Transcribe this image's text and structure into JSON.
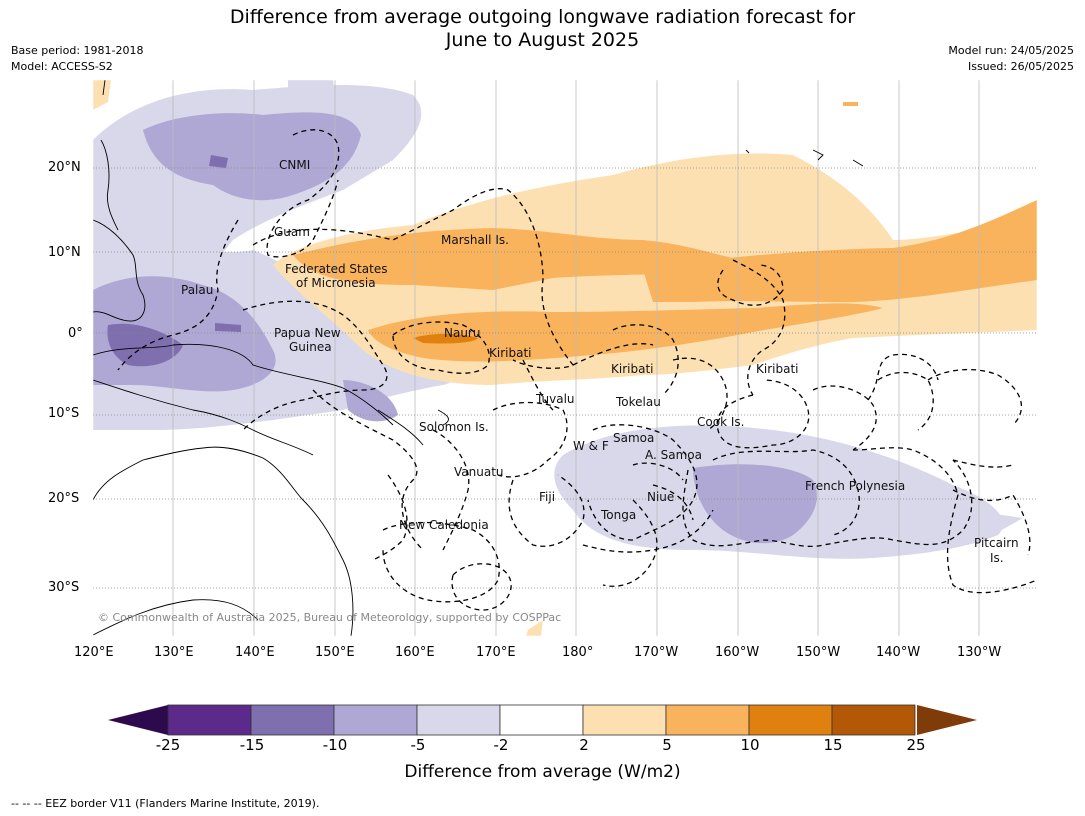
{
  "title_line1": "Difference from average outgoing longwave radiation forecast for",
  "title_line2": "June to August 2025",
  "meta_left": [
    "Base period: 1981-2018",
    "Model: ACCESS-S2"
  ],
  "meta_right": [
    "Model run: 24/05/2025",
    "Issued: 26/05/2025"
  ],
  "lat_labels": [
    "20°N",
    "10°N",
    "0°",
    "10°S",
    "20°S",
    "30°S"
  ],
  "lon_labels": [
    "120°E",
    "130°E",
    "140°E",
    "150°E",
    "160°E",
    "170°E",
    "180°",
    "170°W",
    "160°W",
    "150°W",
    "140°W",
    "130°W"
  ],
  "places": [
    "CNMI",
    "Guam",
    "Marshall Is.",
    "Federated States",
    "of Micronesia",
    "Palau",
    "Papua New",
    "Guinea",
    "Nauru",
    "Kiribati",
    "Kiribati",
    "Kiribati",
    "Tuvalu",
    "Tokelau",
    "Cook Is.",
    "Solomon Is.",
    "W & F",
    "Samoa",
    "A. Samoa",
    "Vanuatu",
    "Fiji",
    "Niue",
    "Tonga",
    "New Caledonia",
    "French Polynesia",
    "Pitcairn",
    "Is."
  ],
  "copyright": "© Commonwealth of Australia 2025, Bureau of Meteorology, supported by COSPPac",
  "colorbar": {
    "ticks": [
      "-25",
      "-15",
      "-10",
      "-5",
      "-2",
      "2",
      "5",
      "10",
      "15",
      "25"
    ],
    "colors": [
      "#5b2a8a",
      "#7f6fae",
      "#b0a8d4",
      "#d8d8ea",
      "#ffffff",
      "#fde0b2",
      "#f9b35c",
      "#e0810f",
      "#b35806"
    ],
    "under_color": "#2d0a4e",
    "over_color": "#7f3b08",
    "label": "Difference from average (W/m2)"
  },
  "footer": "--  --  -- EEZ border V11 (Flanders Marine Institute, 2019)."
}
